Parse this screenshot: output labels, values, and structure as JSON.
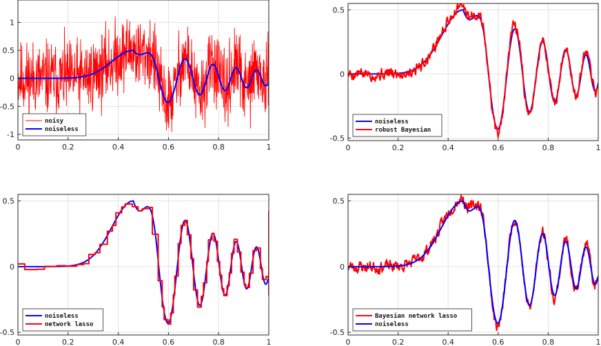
{
  "chart_data": [
    {
      "type": "line",
      "title": "",
      "xlabel": "",
      "ylabel": "",
      "xlim": [
        0,
        1
      ],
      "ylim": [
        -1.1,
        1.4
      ],
      "xticks": [
        0,
        0.2,
        0.4,
        0.6,
        0.8,
        1
      ],
      "yticks": [
        -1,
        -0.5,
        0,
        0.5,
        1
      ],
      "xtick_labels": [
        "0",
        "0.2",
        "0.4",
        "0.6",
        "0.8",
        "1"
      ],
      "ytick_labels": [
        "-1",
        "-0.5",
        "0",
        "0.5",
        "1"
      ],
      "grid": true,
      "legend_position": "bottom-left",
      "series": [
        {
          "name": "noisy",
          "color": "#ff0000",
          "style": "noisy",
          "amp": 0.32,
          "seed": 11
        },
        {
          "name": "noiseless",
          "color": "#0000ff",
          "style": "clean"
        }
      ]
    },
    {
      "type": "line",
      "title": "",
      "xlabel": "",
      "ylabel": "",
      "xlim": [
        0,
        1
      ],
      "ylim": [
        -0.52,
        0.55
      ],
      "xticks": [
        0,
        0.2,
        0.4,
        0.6,
        0.8,
        1
      ],
      "yticks": [
        -0.5,
        0,
        0.5
      ],
      "xtick_labels": [
        "0",
        "0.2",
        "0.4",
        "0.6",
        "0.8",
        "1"
      ],
      "ytick_labels": [
        "-0.5",
        "0",
        "0.5"
      ],
      "grid": true,
      "legend_position": "bottom-left",
      "series": [
        {
          "name": "noiseless",
          "color": "#0000ff",
          "style": "clean"
        },
        {
          "name": "robust Bayesian",
          "color": "#ff0000",
          "style": "smooth",
          "amp": 0.045,
          "seed": 5
        }
      ]
    },
    {
      "type": "line",
      "title": "",
      "xlabel": "",
      "ylabel": "",
      "xlim": [
        0,
        1
      ],
      "ylim": [
        -0.52,
        0.55
      ],
      "xticks": [
        0,
        0.2,
        0.4,
        0.6,
        0.8,
        1
      ],
      "yticks": [
        -0.5,
        0,
        0.5
      ],
      "xtick_labels": [
        "0",
        "0.2",
        "0.4",
        "0.6",
        "0.8",
        "1"
      ],
      "ytick_labels": [
        "-0.5",
        "0",
        "0.5"
      ],
      "grid": true,
      "legend_position": "bottom-left",
      "series": [
        {
          "name": "noiseless",
          "color": "#0000ff",
          "style": "clean"
        },
        {
          "name": "network lasso",
          "color": "#ff0000",
          "style": "step"
        }
      ]
    },
    {
      "type": "line",
      "title": "",
      "xlabel": "",
      "ylabel": "",
      "xlim": [
        0,
        1
      ],
      "ylim": [
        -0.52,
        0.55
      ],
      "xticks": [
        0,
        0.2,
        0.4,
        0.6,
        0.8,
        1
      ],
      "yticks": [
        -0.5,
        0,
        0.5
      ],
      "xtick_labels": [
        "0",
        "0.2",
        "0.4",
        "0.6",
        "0.8",
        "1"
      ],
      "ytick_labels": [
        "-0.5",
        "0",
        "0.5"
      ],
      "grid": true,
      "legend_position": "bottom-left",
      "series": [
        {
          "name": "Bayesian network lasso",
          "color": "#ff0000",
          "style": "smooth",
          "amp": 0.045,
          "seed": 23
        },
        {
          "name": "noiseless",
          "color": "#0000ff",
          "style": "clean"
        }
      ]
    }
  ]
}
